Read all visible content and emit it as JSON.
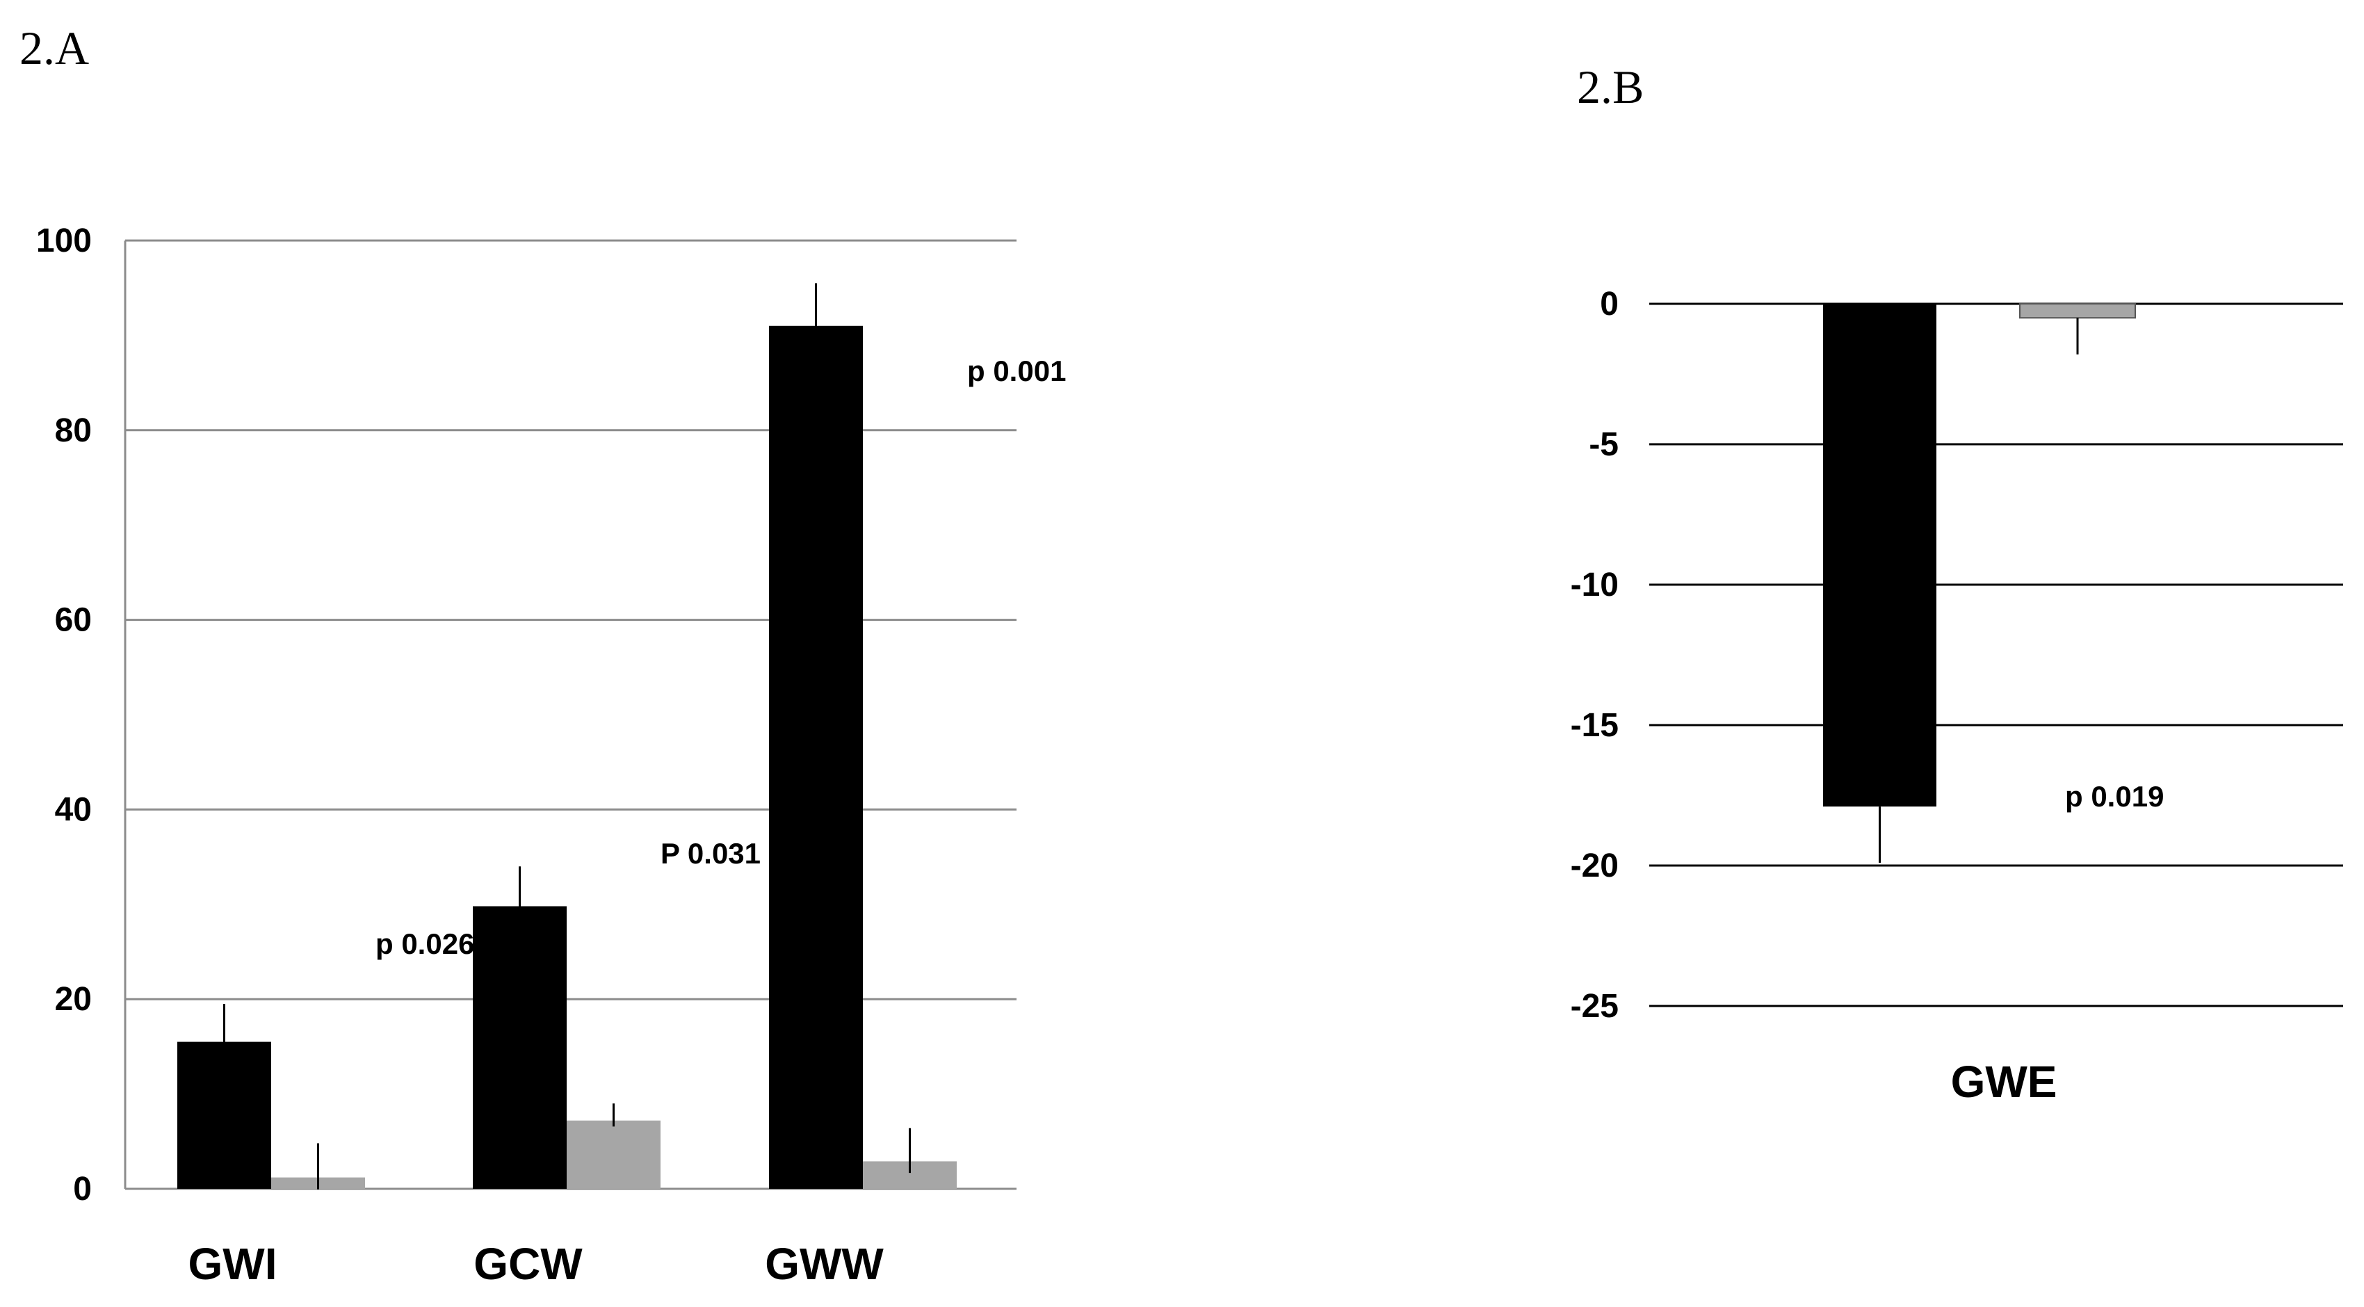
{
  "panels": [
    {
      "label": "2.A"
    },
    {
      "label": "2.B"
    }
  ],
  "chart_data": [
    {
      "type": "bar",
      "categories": [
        "GWI",
        "GCW",
        "GWW"
      ],
      "series": [
        {
          "color": "#000000",
          "values": [
            15.5,
            29.8,
            91.0
          ],
          "error": [
            4.0,
            4.2,
            4.5
          ]
        },
        {
          "color": "#a6a6a6",
          "values": [
            1.2,
            7.2,
            2.9
          ],
          "error": [
            3.6,
            1.8,
            3.5
          ]
        }
      ],
      "annotations": [
        "p 0.026",
        "P 0.031",
        "p 0.001"
      ],
      "yticks": [
        0,
        20,
        40,
        60,
        80,
        100
      ],
      "ylim": [
        0,
        100
      ],
      "grid": true,
      "xlabel": "",
      "ylabel": ""
    },
    {
      "type": "bar",
      "categories": [
        "GWE"
      ],
      "series": [
        {
          "color": "#000000",
          "values": [
            -17.9
          ],
          "error": [
            2.0
          ]
        },
        {
          "color": "#a6a6a6",
          "values": [
            -0.5
          ],
          "error": [
            1.3
          ]
        }
      ],
      "annotations": [
        "p 0.019"
      ],
      "yticks": [
        0,
        -5,
        -10,
        -15,
        -20,
        -25
      ],
      "ylim": [
        -25,
        0
      ],
      "grid": true,
      "xlabel": "",
      "ylabel": ""
    }
  ]
}
